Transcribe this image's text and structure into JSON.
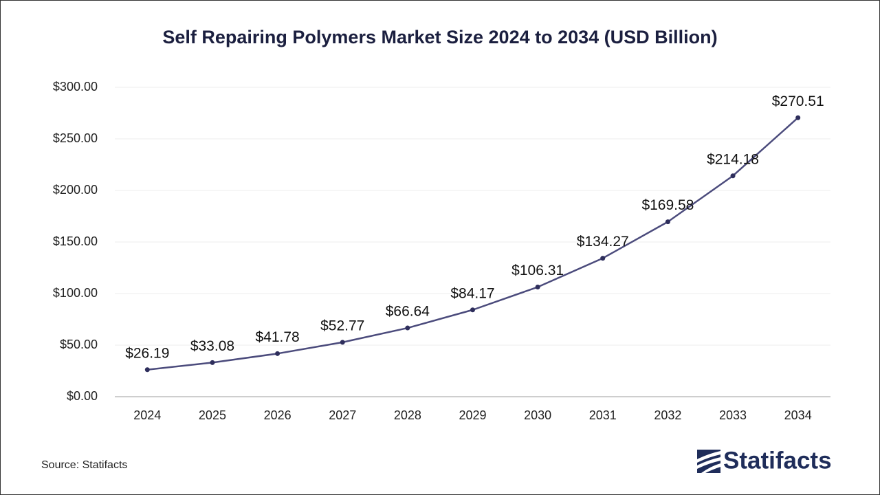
{
  "chart_data": {
    "type": "line",
    "title": "Self Repairing Polymers Market Size 2024 to 2034 (USD Billion)",
    "categories": [
      "2024",
      "2025",
      "2026",
      "2027",
      "2028",
      "2029",
      "2030",
      "2031",
      "2032",
      "2033",
      "2034"
    ],
    "values": [
      26.19,
      33.08,
      41.78,
      52.77,
      66.64,
      84.17,
      106.31,
      134.27,
      169.58,
      214.18,
      270.51
    ],
    "value_labels": [
      "$26.19",
      "$33.08",
      "$41.78",
      "$52.77",
      "$66.64",
      "$84.17",
      "$106.31",
      "$134.27",
      "$169.58",
      "$214.18",
      "$270.51"
    ],
    "color": "#4b4b7c",
    "marker_color": "#2e2e5c",
    "ylim": [
      0,
      300
    ],
    "yticks": [
      {
        "value": 0,
        "label": "$0.00"
      },
      {
        "value": 50,
        "label": "$50.00"
      },
      {
        "value": 100,
        "label": "$100.00"
      },
      {
        "value": 150,
        "label": "$150.00"
      },
      {
        "value": 200,
        "label": "$200.00"
      },
      {
        "value": 250,
        "label": "$250.00"
      },
      {
        "value": 300,
        "label": "$300.00"
      }
    ],
    "grid": true,
    "source": "Source: Statifacts",
    "logo": "Statifacts"
  }
}
